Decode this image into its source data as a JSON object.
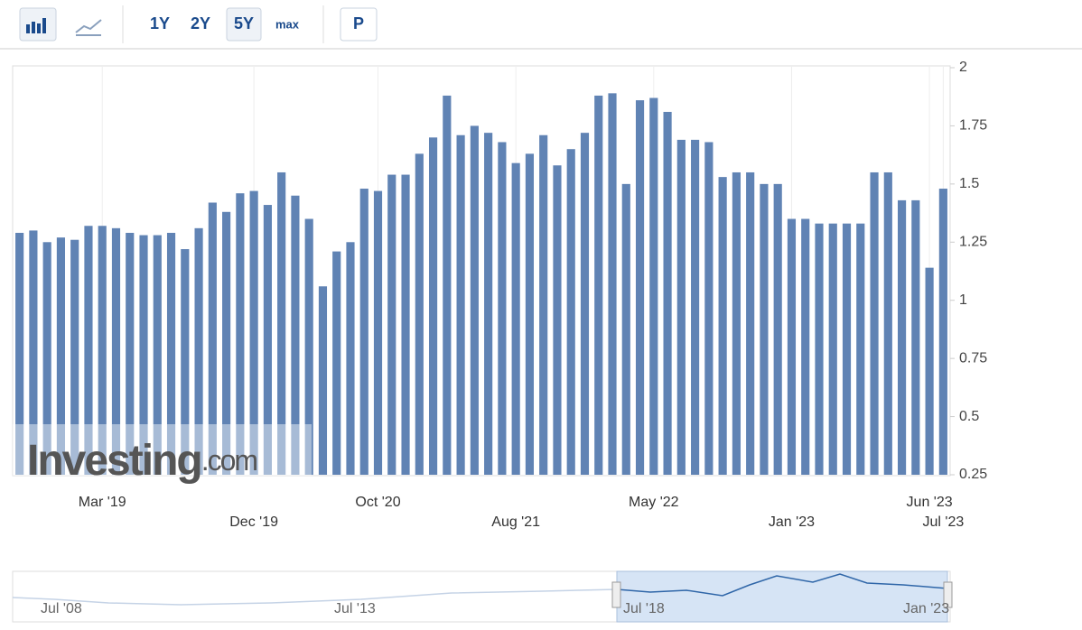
{
  "toolbar": {
    "buttons": [
      "1Y",
      "2Y",
      "5Y",
      "max",
      "P"
    ]
  },
  "watermark": {
    "parts": [
      "Investing",
      ".com"
    ]
  },
  "navigator": {
    "labels": [
      "Jul '08",
      "Jul '13",
      "Jul '18",
      "Jan '23"
    ]
  },
  "chart_data": {
    "type": "bar",
    "color": "#6083b4",
    "categories": [
      null,
      null,
      null,
      null,
      null,
      null,
      "Mar '19",
      null,
      null,
      null,
      null,
      null,
      null,
      null,
      null,
      null,
      null,
      "Dec '19",
      null,
      null,
      null,
      null,
      null,
      null,
      null,
      null,
      "Oct '20",
      null,
      null,
      null,
      null,
      null,
      null,
      null,
      null,
      null,
      "Aug '21",
      null,
      null,
      null,
      null,
      null,
      null,
      null,
      null,
      null,
      "May '22",
      null,
      null,
      null,
      null,
      null,
      null,
      null,
      null,
      null,
      "Jan '23",
      null,
      null,
      null,
      null,
      null,
      null,
      null,
      null,
      null,
      "Jun '23",
      "Jul '23"
    ],
    "values": [
      1.29,
      1.3,
      1.25,
      1.27,
      1.26,
      1.32,
      1.32,
      1.31,
      1.29,
      1.28,
      1.28,
      1.29,
      1.22,
      1.31,
      1.42,
      1.38,
      1.46,
      1.47,
      1.41,
      1.55,
      1.45,
      1.35,
      1.06,
      1.21,
      1.25,
      1.48,
      1.47,
      1.54,
      1.54,
      1.63,
      1.7,
      1.88,
      1.71,
      1.75,
      1.72,
      1.68,
      1.59,
      1.63,
      1.71,
      1.58,
      1.65,
      1.72,
      1.88,
      1.89,
      1.5,
      1.86,
      1.87,
      1.81,
      1.69,
      1.69,
      1.68,
      1.53,
      1.55,
      1.55,
      1.5,
      1.5,
      1.35,
      1.35,
      1.33,
      1.33,
      1.33,
      1.33,
      1.55,
      1.55,
      1.43,
      1.43,
      1.14,
      1.48
    ],
    "ylim": [
      0.25,
      2
    ],
    "yticks": [
      0.25,
      0.5,
      0.75,
      1,
      1.25,
      1.5,
      1.75,
      2
    ]
  }
}
